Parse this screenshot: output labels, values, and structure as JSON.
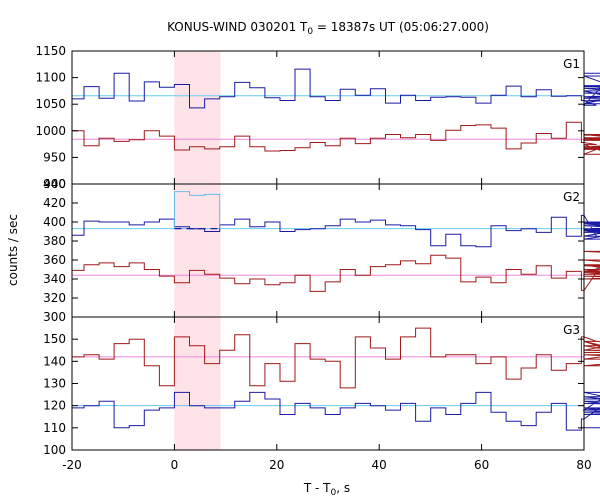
{
  "chart_data": {
    "type": "line",
    "title_prefix": "KONUS-WIND 030201 T",
    "title_sub": "0",
    "title_suffix": " = 18387s UT (05:06:27.000)",
    "xlabel_prefix": "T - T",
    "xlabel_sub": "0",
    "xlabel_suffix": ", s",
    "ylabel": "counts / sec",
    "xlim": [
      -20,
      80
    ],
    "x_ticks": [
      "-20",
      "0",
      "20",
      "40",
      "60",
      "80"
    ],
    "bin_width": 2.944,
    "bin_start": -20.6,
    "shaded_interval": [
      0,
      9
    ],
    "colors": {
      "blue": "#1a1aa6",
      "red": "#a01818",
      "cyan_line": "#66ccee",
      "pink_line": "#ee88dd",
      "shade": "#fde3e7",
      "highlight": "#66bbee"
    },
    "panels": [
      {
        "label": "G1",
        "ylim": [
          900,
          1150
        ],
        "y_ticks": [
          "900",
          "950",
          "1000",
          "1050",
          "1100",
          "1150"
        ],
        "bg_blue": 1066,
        "bg_red": 984,
        "series": [
          {
            "color": "blue",
            "values": [
              1060,
              1083,
              1061,
              1108,
              1056,
              1092,
              1082,
              1087,
              1043,
              1060,
              1064,
              1091,
              1081,
              1062,
              1057,
              1116,
              1064,
              1057,
              1078,
              1067,
              1079,
              1052,
              1067,
              1057,
              1063,
              1064,
              1063,
              1052,
              1067,
              1084,
              1064,
              1077,
              1065,
              1066,
              1057,
              1048,
              1103,
              1075,
              1051,
              1080,
              1064,
              1071,
              1071,
              1061,
              1085,
              1056,
              1083,
              1108
            ]
          },
          {
            "color": "red",
            "values": [
              1000,
              972,
              986,
              980,
              983,
              1000,
              990,
              964,
              970,
              966,
              970,
              990,
              970,
              962,
              963,
              968,
              978,
              972,
              986,
              976,
              986,
              993,
              987,
              993,
              982,
              1001,
              1010,
              1011,
              1005,
              966,
              977,
              995,
              986,
              1016,
              978,
              974,
              956,
              987,
              982,
              984,
              985,
              992,
              993,
              967,
              969,
              993,
              965,
              970
            ]
          }
        ]
      },
      {
        "label": "G2",
        "ylim": [
          300,
          440
        ],
        "y_ticks": [
          "300",
          "320",
          "340",
          "360",
          "380",
          "400",
          "420",
          "440"
        ],
        "bg_blue": 393,
        "bg_red": 344,
        "series": [
          {
            "color": "blue",
            "values": [
              386,
              401,
              400,
              400,
              397,
              400,
              403,
              395,
              393,
              390,
              397,
              403,
              395,
              400,
              390,
              392,
              393,
              396,
              403,
              400,
              402,
              397,
              396,
              392,
              375,
              387,
              375,
              374,
              396,
              391,
              393,
              389,
              405,
              385,
              407,
              385,
              391,
              385,
              396,
              393,
              382,
              398,
              389,
              399,
              393,
              398,
              400,
              392
            ]
          },
          {
            "color": "red",
            "values": [
              349,
              355,
              357,
              353,
              357,
              350,
              343,
              336,
              349,
              345,
              341,
              335,
              340,
              334,
              336,
              344,
              327,
              337,
              350,
              344,
              353,
              355,
              359,
              356,
              365,
              362,
              337,
              342,
              336,
              350,
              345,
              354,
              341,
              348,
              328,
              347,
              355,
              347,
              350,
              343,
              340,
              345,
              354,
              348,
              348,
              369,
              360,
              343
            ]
          }
        ],
        "highlight": {
          "values": [
            432,
            428,
            429
          ],
          "gap_level": 393
        }
      },
      {
        "label": "G3",
        "ylim": [
          100,
          160
        ],
        "y_ticks": [
          "100",
          "110",
          "120",
          "130",
          "140",
          "150"
        ],
        "bg_blue": 120,
        "bg_red": 142,
        "series": [
          {
            "color": "blue",
            "values": [
              119,
              120,
              122,
              110,
              111,
              118,
              119,
              126,
              120,
              119,
              119,
              122,
              126,
              123,
              116,
              121,
              119,
              116,
              119,
              121,
              120,
              118,
              121,
              113,
              119,
              116,
              121,
              126,
              117,
              113,
              111,
              117,
              121,
              109,
              114,
              118,
              126,
              122,
              119,
              116,
              118,
              118,
              123,
              124,
              117,
              121,
              119,
              110
            ]
          },
          {
            "color": "red",
            "values": [
              142,
              143,
              141,
              148,
              150,
              138,
              129,
              151,
              147,
              139,
              145,
              152,
              129,
              139,
              131,
              148,
              141,
              140,
              128,
              151,
              146,
              141,
              151,
              155,
              142,
              143,
              143,
              139,
              142,
              132,
              137,
              143,
              136,
              139,
              151,
              149,
              145,
              149,
              143,
              143,
              141,
              147,
              147,
              138,
              144,
              144,
              145,
              144
            ]
          }
        ]
      }
    ]
  }
}
